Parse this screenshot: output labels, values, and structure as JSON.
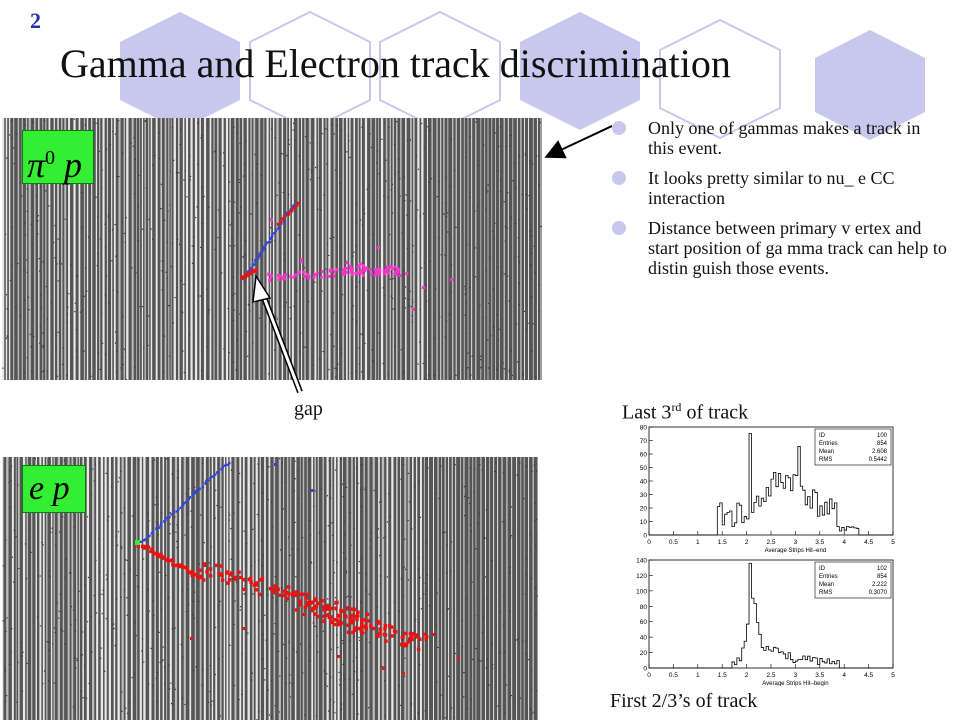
{
  "slide": {
    "number": "2",
    "title": "Gamma and Electron track discrimination"
  },
  "bullets": [
    "Only one of gammas makes a track in this event.",
    "It looks pretty similar to nu_ e CC interaction",
    "Distance between primary v ertex and start position of ga mma track can help to distin guish those events."
  ],
  "event_panels": {
    "top": {
      "label_symbol": "π",
      "label_sup": "0",
      "label_rest": "p"
    },
    "bottom": {
      "label_symbol": "e",
      "label_rest": "p"
    },
    "gap_label": "gap"
  },
  "histograms": {
    "caption_top_pre": "Last 3",
    "caption_top_sup": "rd",
    "caption_top_post": " of track",
    "caption_bottom": "First 2/3’s of track",
    "top": {
      "stats_keys": [
        "ID",
        "Entries",
        "Mean",
        "RMS"
      ],
      "stats_values": [
        "100",
        "854",
        "2.608",
        "0.5442"
      ],
      "xlabel": "Average Strips Hit–end",
      "y_ticks": [
        "80",
        "70",
        "60",
        "50",
        "40",
        "30",
        "20",
        "10",
        "0"
      ],
      "x_ticks": [
        "0",
        "0.5",
        "1",
        "1.5",
        "2",
        "2.5",
        "3",
        "3.5",
        "4",
        "4.5",
        "5"
      ]
    },
    "bottom": {
      "stats_keys": [
        "ID",
        "Entries",
        "Mean",
        "RMS"
      ],
      "stats_values": [
        "102",
        "854",
        "2.222",
        "0.3070"
      ],
      "xlabel": "Average Strips Hit–begin",
      "y_ticks": [
        "140",
        "120",
        "100",
        "80",
        "60",
        "40",
        "20",
        "0"
      ],
      "x_ticks": [
        "0",
        "0.5",
        "1",
        "1.5",
        "2",
        "2.5",
        "3",
        "3.5",
        "4",
        "4.5",
        "5"
      ]
    }
  },
  "colors": {
    "hexagon": "#c8c8ee",
    "label_bg": "#33ee33",
    "gamma_track": "#ff33cc",
    "electron_track": "#ee1111",
    "proton_track": "#3344dd"
  }
}
